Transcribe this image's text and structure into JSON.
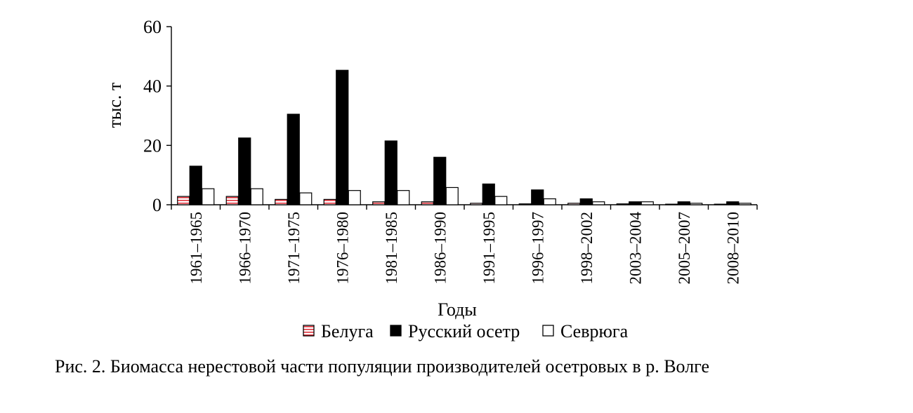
{
  "chart_data": {
    "type": "bar",
    "categories": [
      "1961–1965",
      "1966–1970",
      "1971–1975",
      "1976–1980",
      "1981–1985",
      "1986–1990",
      "1991–1995",
      "1996–1997",
      "1998–2002",
      "2003–2004",
      "2005–2007",
      "2008–2010"
    ],
    "series": [
      {
        "name": "Белуга",
        "values": [
          2.8,
          2.8,
          1.8,
          1.8,
          1.0,
          1.0,
          0.5,
          0.3,
          0.5,
          0.3,
          0.2,
          0.2
        ]
      },
      {
        "name": "Русский осетр",
        "values": [
          13,
          22.5,
          30.5,
          45.3,
          21.5,
          16,
          7,
          5,
          2,
          1,
          1,
          1
        ]
      },
      {
        "name": "Севрюга",
        "values": [
          5.4,
          5.4,
          4,
          4.8,
          4.8,
          5.8,
          2.8,
          2,
          1,
          1,
          0.5,
          0.5
        ]
      }
    ],
    "ylim": [
      0,
      60
    ],
    "yticks": [
      "0",
      "20",
      "40",
      "60"
    ],
    "ylabel": "тыс. т",
    "xlabel": "Годы",
    "legend_position": "bottom",
    "colors": {
      "Белуга": "#ffffff",
      "Русский осетр": "#000000",
      "Севрюга": "#ffffff",
      "beluga_stripe": "#e0303a"
    }
  },
  "caption": "Рис. 2. Биомасса нерестовой части популяции производителей осетровых в р. Волге"
}
